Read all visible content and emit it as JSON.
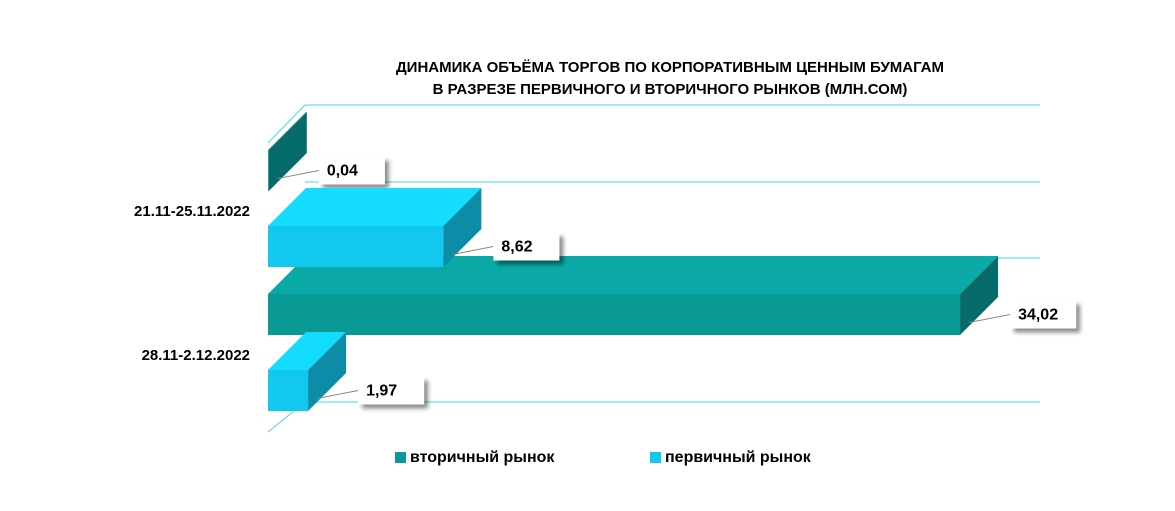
{
  "chart_data": {
    "type": "bar3d-horizontal",
    "title": "ДИНАМИКА ОБЪЁМА ТОРГОВ ПО КОРПОРАТИВНЫМ ЦЕННЫМ БУМАГАМ",
    "subtitle": "В РАЗРЕЗЕ ПЕРВИЧНОГО И ВТОРИЧНОГО РЫНКОВ  (МЛН.СОМ)",
    "categories": [
      "21.11-25.11.2022",
      "28.11-2.12.2022"
    ],
    "series": [
      {
        "name": "вторичный рынок",
        "color": "#0a9a96",
        "values": [
          0.04,
          34.02
        ],
        "value_labels": [
          "0,04",
          "34,02"
        ]
      },
      {
        "name": "первичный рынок",
        "color": "#12c8ee",
        "values": [
          8.62,
          1.97
        ],
        "value_labels": [
          "8,62",
          "1,97"
        ]
      }
    ],
    "xlim": [
      0,
      35
    ],
    "legend": "bottom"
  }
}
